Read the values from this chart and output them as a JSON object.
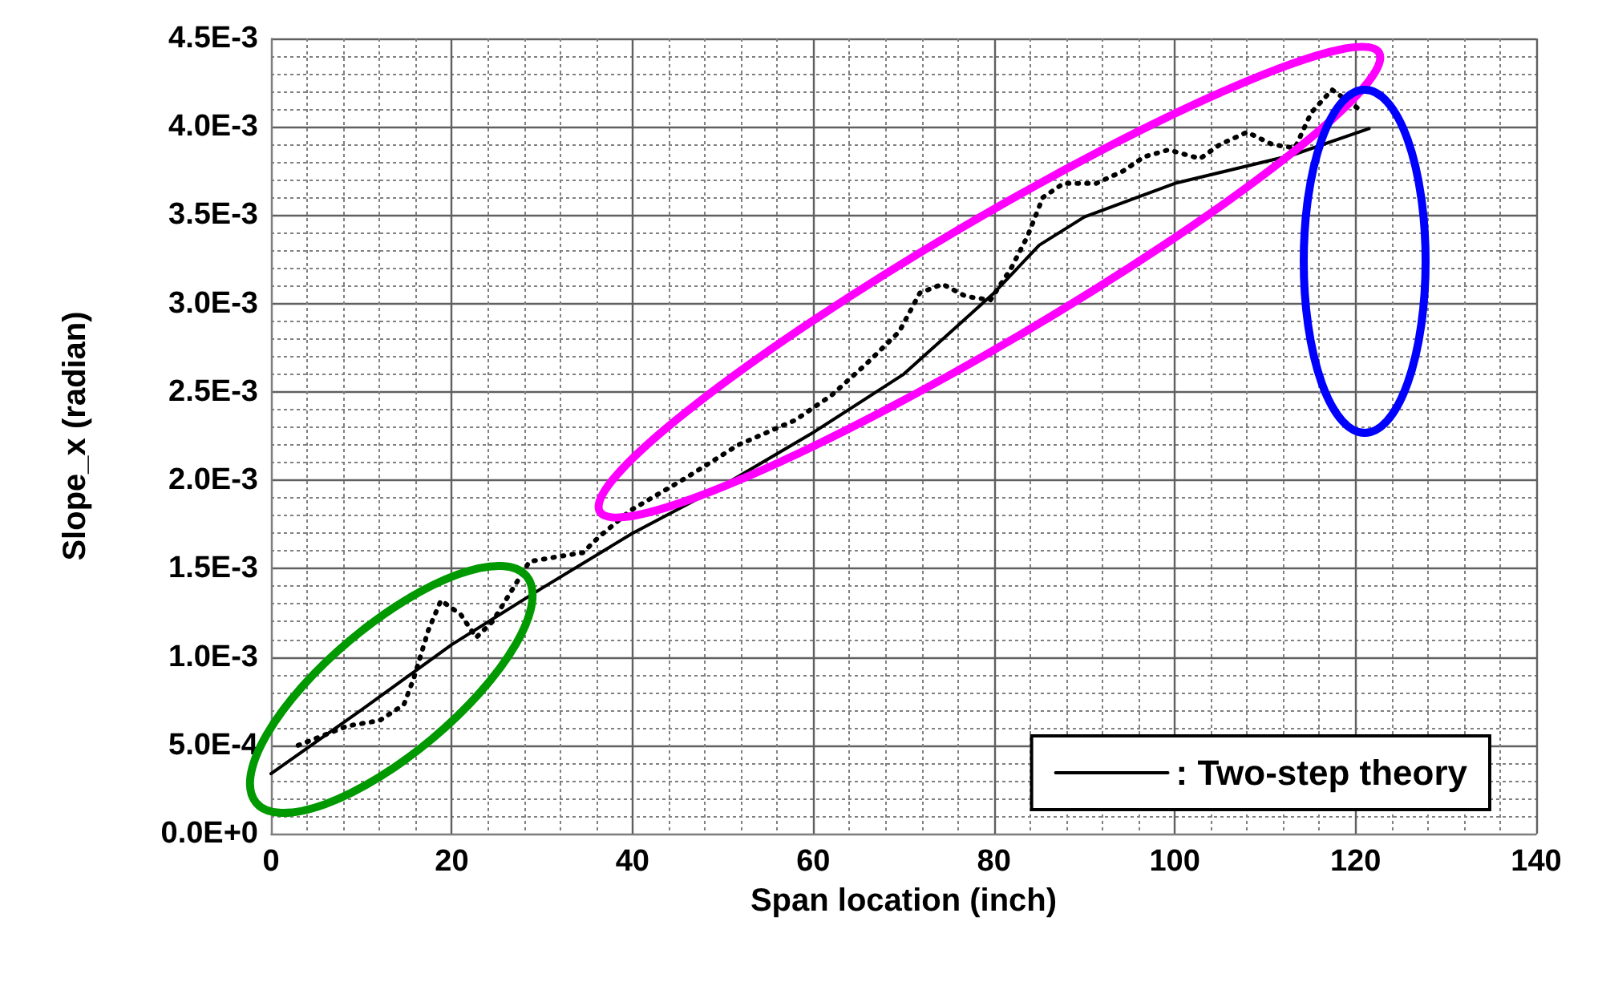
{
  "chart_data": {
    "type": "line",
    "xlabel": "Span location (inch)",
    "ylabel": "Slope_x (radian)",
    "xlim": [
      0,
      140
    ],
    "xticks": [
      0,
      20,
      40,
      60,
      80,
      100,
      120,
      140
    ],
    "ylim": [
      0,
      0.0045
    ],
    "yticks": [
      {
        "value": 0,
        "label": "0.0E+0"
      },
      {
        "value": 0.0005,
        "label": "5.0E-4"
      },
      {
        "value": 0.001,
        "label": "1.0E-3"
      },
      {
        "value": 0.0015,
        "label": "1.5E-3"
      },
      {
        "value": 0.002,
        "label": "2.0E-3"
      },
      {
        "value": 0.0025,
        "label": "2.5E-3"
      },
      {
        "value": 0.003,
        "label": "3.0E-3"
      },
      {
        "value": 0.0035,
        "label": "3.5E-3"
      },
      {
        "value": 0.004,
        "label": "4.0E-3"
      },
      {
        "value": 0.0045,
        "label": "4.5E-3"
      }
    ],
    "grid": true,
    "legend": "bottom right",
    "marker": "none",
    "series": [
      {
        "color": "#000000",
        "line_style": "dotted",
        "x": [
          3,
          5,
          8.5,
          12,
          14.7,
          15.8,
          17.4,
          18.8,
          21,
          22.7,
          24.5,
          26.8,
          28.6,
          32,
          34.5,
          36.3,
          39.8,
          45.8,
          51.7,
          58,
          62,
          65.9,
          69.5,
          71.8,
          74.3,
          76.9,
          79.6,
          81.9,
          83.7,
          85.4,
          87.7,
          91.3,
          94.3,
          96.6,
          99.3,
          102.8,
          105,
          108,
          110.8,
          113.3,
          115.1,
          117.4,
          120.4
        ],
        "values": [
          0.0005,
          0.00054,
          0.00061,
          0.00064,
          0.00073,
          0.00088,
          0.00115,
          0.00132,
          0.00124,
          0.00111,
          0.0012,
          0.00139,
          0.00154,
          0.00157,
          0.00159,
          0.00168,
          0.00183,
          0.00201,
          0.0022,
          0.00234,
          0.00248,
          0.00266,
          0.00284,
          0.00306,
          0.00311,
          0.00304,
          0.00302,
          0.0032,
          0.00338,
          0.0036,
          0.00368,
          0.00368,
          0.00375,
          0.00383,
          0.00387,
          0.00382,
          0.0039,
          0.00397,
          0.0039,
          0.00388,
          0.00408,
          0.00421,
          0.0041
        ]
      },
      {
        "name": ": Two-step theory",
        "color": "#000000",
        "line_style": "solid",
        "x": [
          0,
          10,
          20,
          30,
          40,
          50,
          60,
          70,
          75,
          80,
          85,
          90,
          100,
          113,
          121.5
        ],
        "values": [
          0.00034,
          0.0007,
          0.00107,
          0.00139,
          0.0017,
          0.00197,
          0.00227,
          0.0026,
          0.00283,
          0.00306,
          0.00333,
          0.00349,
          0.00368,
          0.00384,
          0.00399
        ]
      }
    ]
  }
}
